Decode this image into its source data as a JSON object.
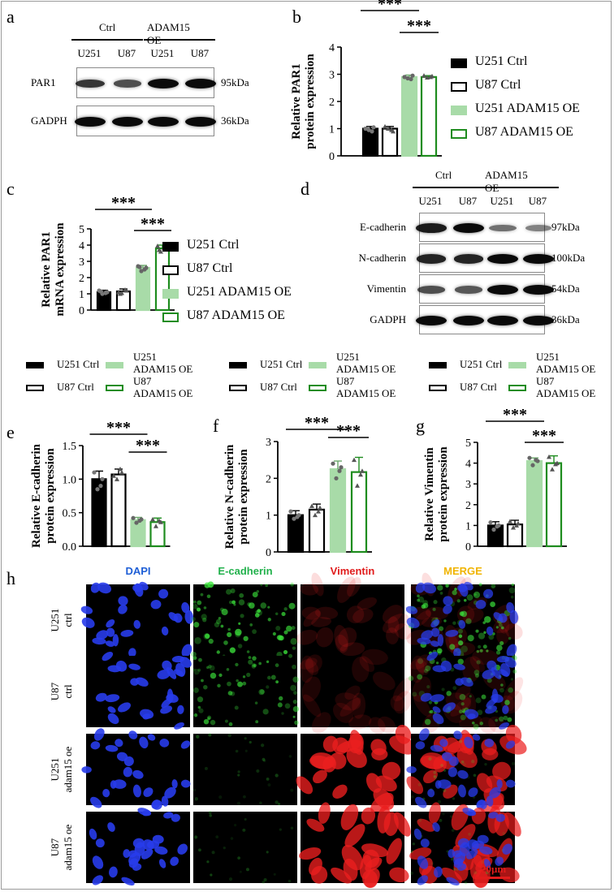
{
  "panel_labels": {
    "a": "a",
    "b": "b",
    "c": "c",
    "d": "d",
    "e": "e",
    "f": "f",
    "g": "g",
    "h": "h"
  },
  "blot_a": {
    "group_ctrl": "Ctrl",
    "group_oe": "ADAM15 OE",
    "lanes": [
      "U251",
      "U87",
      "U251",
      "U87"
    ],
    "rows": [
      {
        "label": "PAR1",
        "kda": "95kDa",
        "intensity": [
          0.75,
          0.6,
          1.0,
          1.0
        ]
      },
      {
        "label": "GADPH",
        "kda": "36kDa",
        "intensity": [
          1.0,
          1.0,
          1.0,
          1.0
        ]
      }
    ]
  },
  "blot_d": {
    "group_ctrl": "Ctrl",
    "group_oe": "ADAM15 OE",
    "lanes": [
      "U251",
      "U87",
      "U251",
      "U87"
    ],
    "rows": [
      {
        "label": "E-cadherin",
        "kda": "97kDa",
        "intensity": [
          0.9,
          1.0,
          0.4,
          0.3
        ]
      },
      {
        "label": "N-cadherin",
        "kda": "100kDa",
        "intensity": [
          0.85,
          0.85,
          1.0,
          1.0
        ]
      },
      {
        "label": "Vimentin",
        "kda": "54kDa",
        "intensity": [
          0.6,
          0.55,
          1.0,
          1.0
        ]
      },
      {
        "label": "GADPH",
        "kda": "36kDa",
        "intensity": [
          1.0,
          1.0,
          1.0,
          1.0
        ]
      }
    ]
  },
  "legend_bd": {
    "items": [
      "U251 Ctrl",
      "U87 Ctrl",
      "U251 ADAM15 OE",
      "U87 ADAM15 OE"
    ]
  },
  "legend_small": {
    "u251_ctrl": "U251 Ctrl",
    "u87_ctrl": "U87 Ctrl",
    "u251_oe_l1": "U251",
    "u251_oe_l2": "ADAM15 OE",
    "u87_oe_l1": "U87",
    "u87_oe_l2": "ADAM15 OE"
  },
  "colors": {
    "black": "#000000",
    "white": "#ffffff",
    "lightgreen": "#a8dba8",
    "green": "#1e8c1e",
    "dot": "#7f7f7f"
  },
  "significance": "***",
  "chart_data": [
    {
      "id": "b",
      "type": "bar",
      "ylabel": "Relative PAR1\nprotein expression",
      "ylim": [
        0,
        4
      ],
      "yticks": [
        0,
        1,
        2,
        3,
        4
      ],
      "categories": [
        "U251 Ctrl",
        "U87 Ctrl",
        "U251 ADAM15 OE",
        "U87 ADAM15 OE"
      ],
      "values": [
        1.0,
        1.0,
        2.9,
        2.9
      ],
      "errors": [
        0.08,
        0.08,
        0.07,
        0.05
      ],
      "points": [
        [
          0.95,
          1.05,
          1.0,
          0.9
        ],
        [
          1.0,
          0.9,
          1.08,
          0.95
        ],
        [
          2.85,
          2.95,
          2.9,
          2.82
        ],
        [
          2.88,
          2.93,
          2.95,
          2.9
        ]
      ]
    },
    {
      "id": "c",
      "type": "bar",
      "ylabel": "Relative PAR1\nmRNA expression",
      "ylim": [
        0,
        5
      ],
      "yticks": [
        0,
        1,
        2,
        3,
        4,
        5
      ],
      "categories": [
        "U251 Ctrl",
        "U87 Ctrl",
        "U251 ADAM15 OE",
        "U87 ADAM15 OE"
      ],
      "values": [
        1.1,
        1.15,
        2.6,
        3.8
      ],
      "errors": [
        0.12,
        0.15,
        0.15,
        0.2
      ],
      "points": [
        [
          1.0,
          1.1,
          1.2,
          1.05,
          1.15
        ],
        [
          1.05,
          1.2,
          1.1,
          1.25,
          1.0
        ],
        [
          2.4,
          2.6,
          2.7,
          2.5,
          2.65
        ],
        [
          3.6,
          3.8,
          3.95,
          3.85,
          3.7
        ]
      ]
    },
    {
      "id": "e",
      "type": "bar",
      "ylabel": "Relative E-cadherin\nprotein expression",
      "ylim": [
        0,
        1.5
      ],
      "yticks": [
        0.0,
        0.5,
        1.0,
        1.5
      ],
      "categories": [
        "U251 Ctrl",
        "U87 Ctrl",
        "U251 ADAM15 OE",
        "U87 ADAM15 OE"
      ],
      "values": [
        1.0,
        1.07,
        0.39,
        0.36
      ],
      "errors": [
        0.12,
        0.08,
        0.04,
        0.06
      ],
      "points": [
        [
          0.85,
          1.0,
          1.1,
          0.9
        ],
        [
          1.0,
          1.1,
          1.05,
          1.15
        ],
        [
          0.35,
          0.4,
          0.42,
          0.38
        ],
        [
          0.3,
          0.36,
          0.4,
          0.38
        ]
      ]
    },
    {
      "id": "f",
      "type": "bar",
      "ylabel": "Relative N-cadherin\nprotein expression",
      "ylim": [
        0,
        3
      ],
      "yticks": [
        0,
        1,
        2,
        3
      ],
      "categories": [
        "U251 Ctrl",
        "U87 Ctrl",
        "U251 ADAM15 OE",
        "U87 ADAM15 OE"
      ],
      "values": [
        1.0,
        1.15,
        2.25,
        2.17
      ],
      "errors": [
        0.12,
        0.15,
        0.22,
        0.4
      ],
      "points": [
        [
          0.9,
          1.0,
          1.1,
          0.95
        ],
        [
          1.0,
          1.2,
          1.25,
          1.1
        ],
        [
          2.0,
          2.3,
          2.4,
          2.2
        ],
        [
          1.8,
          2.2,
          2.5,
          2.1
        ]
      ]
    },
    {
      "id": "g",
      "type": "bar",
      "ylabel": "Relative Vimentin\nprotein expression",
      "ylim": [
        0,
        5
      ],
      "yticks": [
        0,
        1,
        2,
        3,
        4,
        5
      ],
      "categories": [
        "U251 Ctrl",
        "U87 Ctrl",
        "U251 ADAM15 OE",
        "U87 ADAM15 OE"
      ],
      "values": [
        1.0,
        1.05,
        4.1,
        4.0
      ],
      "errors": [
        0.18,
        0.2,
        0.15,
        0.35
      ],
      "points": [
        [
          0.8,
          1.0,
          1.15,
          0.95
        ],
        [
          0.9,
          1.1,
          1.2,
          1.0
        ],
        [
          3.9,
          4.1,
          4.25,
          4.15
        ],
        [
          3.7,
          4.0,
          4.3,
          3.95
        ]
      ]
    }
  ],
  "if_panel": {
    "columns": [
      {
        "label": "DAPI",
        "color": "#1f5fd6"
      },
      {
        "label": "E-cadherin",
        "color": "#22b14c"
      },
      {
        "label": "Vimentin",
        "color": "#e01b1b"
      },
      {
        "label": "MERGE",
        "color": "#f0b400"
      }
    ],
    "rows": [
      {
        "l1": "U251",
        "l2": "ctrl",
        "green": 0.95,
        "red": 0.15
      },
      {
        "l1": "U87",
        "l2": "ctrl",
        "green": 0.8,
        "red": 0.12
      },
      {
        "l1": "U251",
        "l2": "adam15 oe",
        "green": 0.25,
        "red": 1.0
      },
      {
        "l1": "U87",
        "l2": "adam15 oe",
        "green": 0.2,
        "red": 1.0
      }
    ],
    "scale_bar": "20μm"
  }
}
